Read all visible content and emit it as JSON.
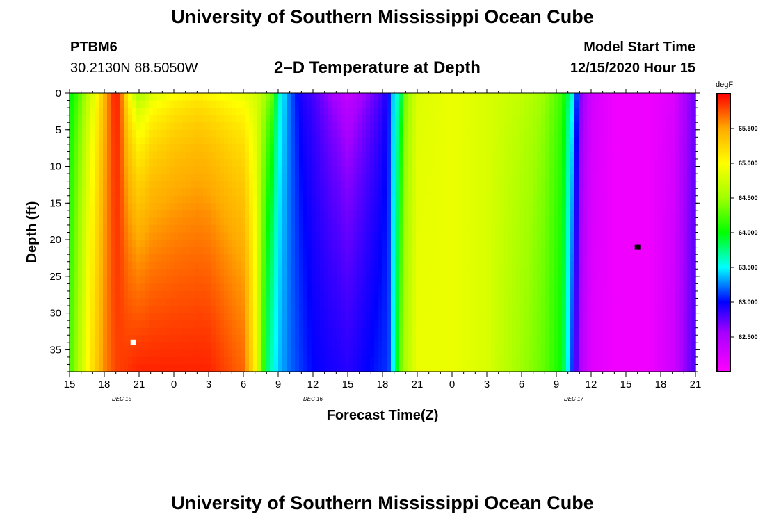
{
  "header": {
    "title_top": "University of Southern Mississippi Ocean Cube",
    "title_bottom": "University of Southern Mississippi Ocean Cube",
    "station_id": "PTBM6",
    "station_coords": "30.2130N 88.5050W",
    "plot_name": "2–D Temperature at Depth",
    "start_time_label": "Model Start Time",
    "start_time_value": "12/15/2020 Hour 15"
  },
  "chart_data": {
    "type": "heatmap",
    "title": "2–D Temperature at Depth",
    "xlabel": "Forecast Time(Z)",
    "ylabel": "Depth (ft)",
    "units": "degF",
    "x_range_hours": [
      0,
      54
    ],
    "x_ticks": [
      {
        "h": 0,
        "label": "15"
      },
      {
        "h": 3,
        "label": "18"
      },
      {
        "h": 6,
        "label": "21"
      },
      {
        "h": 9,
        "label": "0"
      },
      {
        "h": 12,
        "label": "3"
      },
      {
        "h": 15,
        "label": "6"
      },
      {
        "h": 18,
        "label": "9"
      },
      {
        "h": 21,
        "label": "12"
      },
      {
        "h": 24,
        "label": "15"
      },
      {
        "h": 27,
        "label": "18"
      },
      {
        "h": 30,
        "label": "21"
      },
      {
        "h": 33,
        "label": "0"
      },
      {
        "h": 36,
        "label": "3"
      },
      {
        "h": 39,
        "label": "6"
      },
      {
        "h": 42,
        "label": "9"
      },
      {
        "h": 45,
        "label": "12"
      },
      {
        "h": 48,
        "label": "15"
      },
      {
        "h": 51,
        "label": "18"
      },
      {
        "h": 54,
        "label": "21"
      }
    ],
    "date_labels": [
      {
        "h": 4.5,
        "label": "DEC 15"
      },
      {
        "h": 21,
        "label": "DEC 16"
      },
      {
        "h": 43.5,
        "label": "DEC 17"
      }
    ],
    "y_range_ft": [
      0,
      38
    ],
    "y_ticks": [
      0,
      5,
      10,
      15,
      20,
      25,
      30,
      35
    ],
    "colorbar": {
      "min": 62.0,
      "max": 66.0,
      "ticks": [
        "62.500",
        "63.000",
        "63.500",
        "64.000",
        "64.500",
        "65.000",
        "65.500"
      ],
      "tick_values": [
        62.5,
        63.0,
        63.5,
        64.0,
        64.5,
        65.0,
        65.5
      ]
    },
    "surface_series_hours": [
      0,
      1,
      2,
      3,
      3.5,
      4,
      4.5,
      5,
      6,
      7,
      9,
      11,
      13,
      15,
      16.5,
      17.5,
      18,
      19,
      20,
      21,
      24,
      27,
      27.5,
      28,
      28.5,
      29,
      30,
      33,
      36,
      39,
      41,
      42.5,
      43.5,
      44,
      45,
      47,
      50,
      52,
      53,
      54
    ],
    "surface_temps_degF": [
      63.9,
      64.3,
      64.8,
      65.4,
      65.7,
      66.0,
      65.6,
      65.0,
      64.4,
      64.7,
      64.9,
      65.0,
      64.9,
      64.8,
      64.7,
      64.4,
      63.7,
      63.2,
      62.9,
      62.8,
      62.3,
      62.8,
      63.0,
      63.5,
      63.6,
      64.4,
      64.8,
      64.9,
      64.8,
      64.7,
      64.5,
      64.2,
      63.6,
      62.7,
      62.3,
      62.1,
      62.1,
      62.2,
      62.5,
      62.7
    ],
    "bottom_series_hours": [
      0,
      1,
      2,
      3,
      4,
      6,
      9,
      12,
      15,
      16,
      16.5,
      17,
      18,
      19,
      20,
      21,
      24,
      27.5,
      28,
      28.5,
      29,
      30,
      33,
      36,
      39,
      41,
      42.5,
      43.5,
      44,
      45,
      47,
      50,
      52,
      53,
      54
    ],
    "bottom_temps_degF": [
      64.2,
      64.7,
      65.2,
      65.6,
      65.8,
      65.9,
      65.9,
      65.9,
      65.7,
      65.1,
      64.5,
      63.8,
      63.4,
      63.2,
      63.1,
      63.0,
      62.9,
      63.1,
      63.6,
      64.3,
      64.6,
      64.9,
      64.9,
      64.8,
      64.5,
      64.3,
      64.0,
      63.0,
      62.5,
      62.2,
      62.1,
      62.1,
      62.3,
      62.6,
      62.8
    ],
    "markers": [
      {
        "name": "max-marker",
        "h": 5.5,
        "depth_ft": 34,
        "color": "#ffffff"
      },
      {
        "name": "min-marker",
        "h": 49,
        "depth_ft": 21,
        "color": "#000000"
      }
    ]
  }
}
